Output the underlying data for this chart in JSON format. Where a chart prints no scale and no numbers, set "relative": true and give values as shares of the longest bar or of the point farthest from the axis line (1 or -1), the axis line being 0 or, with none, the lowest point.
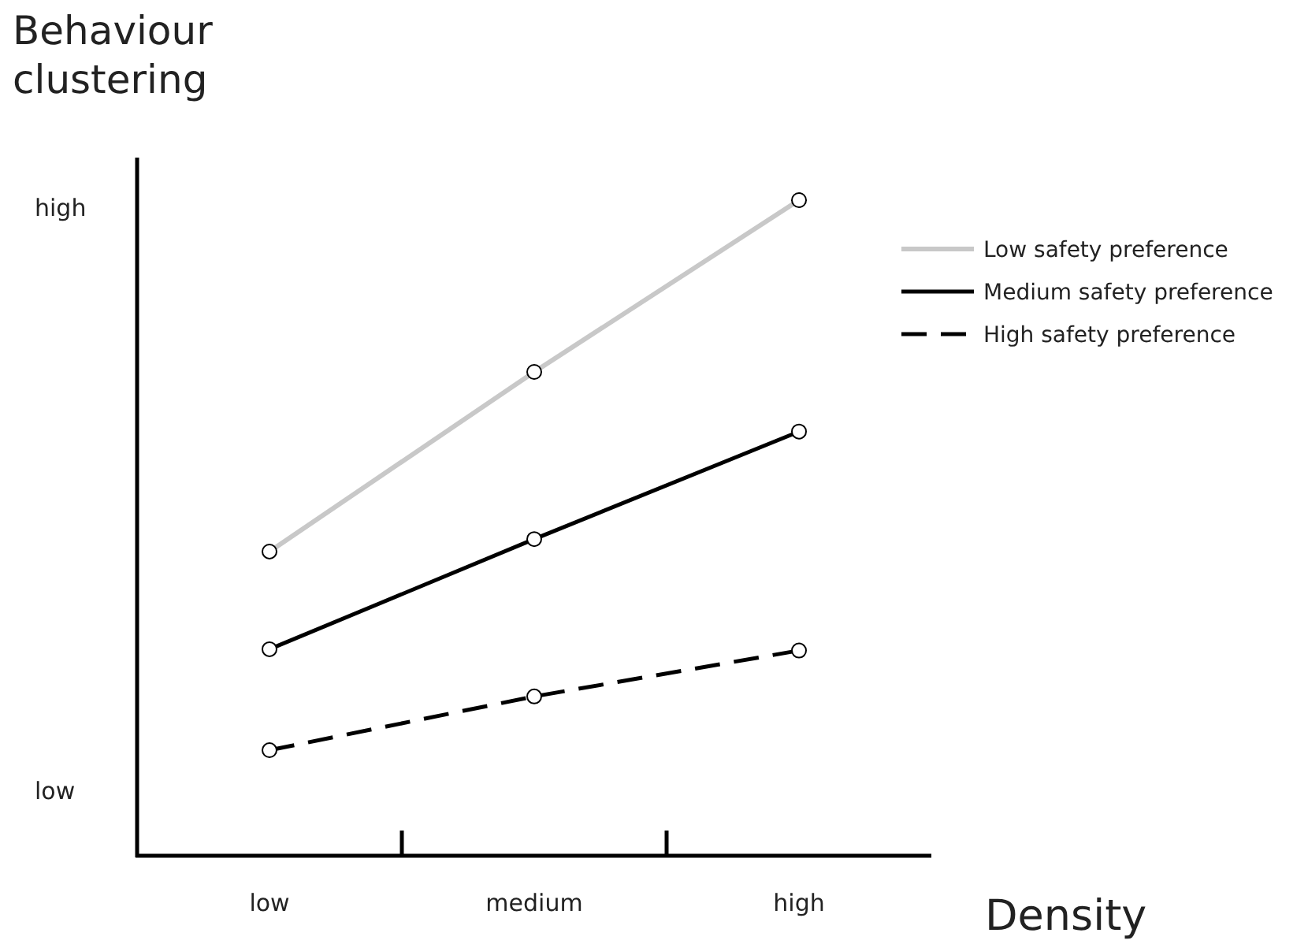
{
  "chart_data": {
    "type": "line",
    "ylabel": "Behaviour\nclustering",
    "xlabel": "Density",
    "categories": [
      "low",
      "medium",
      "high"
    ],
    "relative": true,
    "marker": "circle",
    "legend": "top right",
    "annotations": [
      "high",
      "low"
    ],
    "series": [
      {
        "name": "Low safety preference",
        "color": "#c8c8c8",
        "line_style": "solid",
        "values": [
          0.464,
          0.738,
          1
        ]
      },
      {
        "name": "Medium safety preference",
        "color": "#000000",
        "line_style": "solid",
        "values": [
          0.315,
          0.483,
          0.647
        ]
      },
      {
        "name": "High safety preference",
        "color": "#000000",
        "line_style": "dashed",
        "values": [
          0.161,
          0.243,
          0.313
        ]
      }
    ]
  }
}
